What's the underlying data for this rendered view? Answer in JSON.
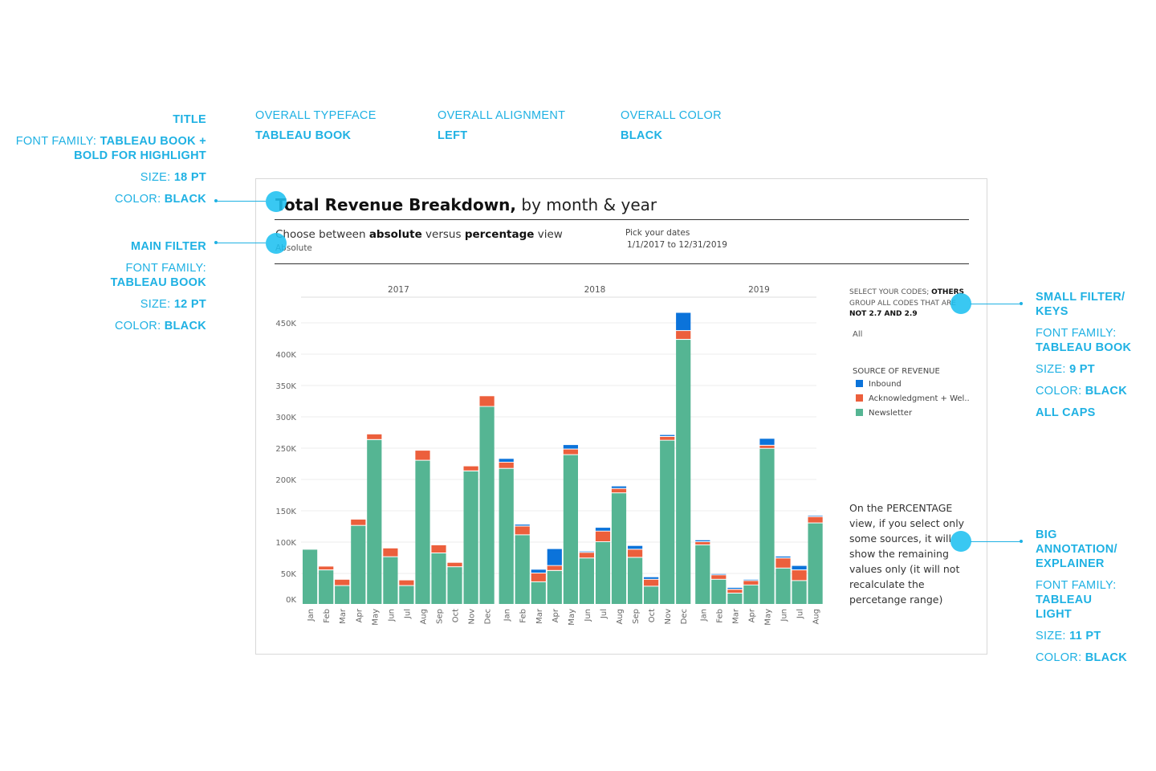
{
  "annotations": {
    "top": [
      {
        "heading": "OVERALL TYPEFACE",
        "value": "TABLEAU BOOK"
      },
      {
        "heading": "OVERALL ALIGNMENT",
        "value": "LEFT"
      },
      {
        "heading": "OVERALL COLOR",
        "value": "BLACK"
      }
    ],
    "title_spec": {
      "heading": "TITLE",
      "font_label": "FONT FAMILY: ",
      "font_value_1": "TABLEAU BOOK +",
      "font_value_2": "BOLD FOR HIGHLIGHT",
      "size_label": "SIZE: ",
      "size_value": "18 PT",
      "color_label": "COLOR: ",
      "color_value": "BLACK"
    },
    "main_filter_spec": {
      "heading": "MAIN FILTER",
      "font_label": "FONT FAMILY:",
      "font_value": "TABLEAU BOOK",
      "size_label": "SIZE: ",
      "size_value": "12 PT",
      "color_label": "COLOR: ",
      "color_value": "BLACK"
    },
    "small_filter_spec": {
      "heading_1": "SMALL FILTER/",
      "heading_2": "KEYS",
      "font_label": "FONT FAMILY:",
      "font_value": "TABLEAU BOOK",
      "size_label": "SIZE: ",
      "size_value": "9 PT",
      "color_label": "COLOR: ",
      "color_value": "BLACK",
      "extra": "ALL CAPS"
    },
    "big_annotation_spec": {
      "heading_1": "BIG",
      "heading_2": "ANNOTATION/",
      "heading_3": "EXPLAINER",
      "font_label": "FONT FAMILY:",
      "font_value_1": "TABLEAU",
      "font_value_2": "LIGHT",
      "size_label": "SIZE: ",
      "size_value": "11 PT",
      "color_label": "COLOR: ",
      "color_value": "BLACK"
    },
    "accent_color": "#1fb1e3"
  },
  "dashboard": {
    "title_bold": "Total Revenue Breakdown,",
    "title_rest": " by month & year",
    "view_filter": {
      "label_pre": "Choose between ",
      "label_b1": "absolute",
      "label_mid": " versus ",
      "label_b2": "percentage",
      "label_post": " view",
      "value": "Absolute"
    },
    "date_filter": {
      "label": "Pick your dates",
      "value": "1/1/2017 to 12/31/2019"
    },
    "codes_filter": {
      "label_pre": "SELECT YOUR CODES; ",
      "label_bold1": "OTHERS",
      "label_mid": " GROUP ALL CODES THAT ARE ",
      "label_bold2": "NOT 2.7 AND 2.9",
      "value": "All"
    },
    "legend": {
      "title": "SOURCE OF REVENUE",
      "items": [
        {
          "label": "Inbound",
          "color": "#0b73da"
        },
        {
          "label": "Acknowledgment + Wel..",
          "color": "#ec5f3c"
        },
        {
          "label": "Newsletter",
          "color": "#55b593"
        }
      ]
    },
    "explainer": "On the PERCENTAGE view, if you select only some sources, it will show the remaining values only (it will not recalculate the percetange range)"
  },
  "chart_data": {
    "type": "bar",
    "stacked": true,
    "title": "Total Revenue Breakdown, by month & year",
    "xlabel": "",
    "ylabel": "",
    "ylim": [
      0,
      470
    ],
    "y_unit": "K",
    "y_ticks": [
      "0K",
      "50K",
      "100K",
      "150K",
      "200K",
      "250K",
      "300K",
      "350K",
      "400K",
      "450K"
    ],
    "y_tick_values": [
      0,
      50,
      100,
      150,
      200,
      250,
      300,
      350,
      400,
      450
    ],
    "grid": true,
    "legend_position": "right",
    "groups": [
      {
        "year": "2017",
        "months": [
          "Jan",
          "Feb",
          "Mar",
          "Apr",
          "May",
          "Jun",
          "Jul",
          "Aug",
          "Sep",
          "Oct",
          "Nov",
          "Dec"
        ]
      },
      {
        "year": "2018",
        "months": [
          "Jan",
          "Feb",
          "Mar",
          "Apr",
          "May",
          "Jun",
          "Jul",
          "Aug",
          "Sep",
          "Oct",
          "Nov",
          "Dec"
        ]
      },
      {
        "year": "2019",
        "months": [
          "Jan",
          "Feb",
          "Mar",
          "Apr",
          "May",
          "Jun",
          "Jul",
          "Aug"
        ]
      }
    ],
    "series": [
      {
        "name": "Newsletter",
        "color": "#55b593",
        "values": [
          88,
          55,
          30,
          126,
          263,
          76,
          30,
          230,
          82,
          60,
          213,
          316,
          217,
          111,
          36,
          54,
          239,
          74,
          100,
          178,
          75,
          29,
          262,
          423,
          95,
          40,
          18,
          31,
          249,
          58,
          38,
          130
        ]
      },
      {
        "name": "Acknowledgment + Wel..",
        "color": "#ec5f3c",
        "values": [
          0,
          6,
          10,
          10,
          9,
          14,
          9,
          16,
          13,
          7,
          8,
          17,
          10,
          14,
          14,
          8,
          9,
          9,
          17,
          7,
          13,
          11,
          6,
          14,
          5,
          7,
          6,
          7,
          5,
          16,
          17,
          10
        ]
      },
      {
        "name": "Inbound",
        "color": "#0b73da",
        "values": [
          0,
          0,
          0,
          0,
          0,
          0,
          0,
          0,
          0,
          0,
          0,
          0,
          6,
          3,
          6,
          27,
          7,
          2,
          6,
          4,
          6,
          4,
          3,
          29,
          3,
          2,
          3,
          2,
          11,
          3,
          7,
          2
        ]
      }
    ]
  }
}
